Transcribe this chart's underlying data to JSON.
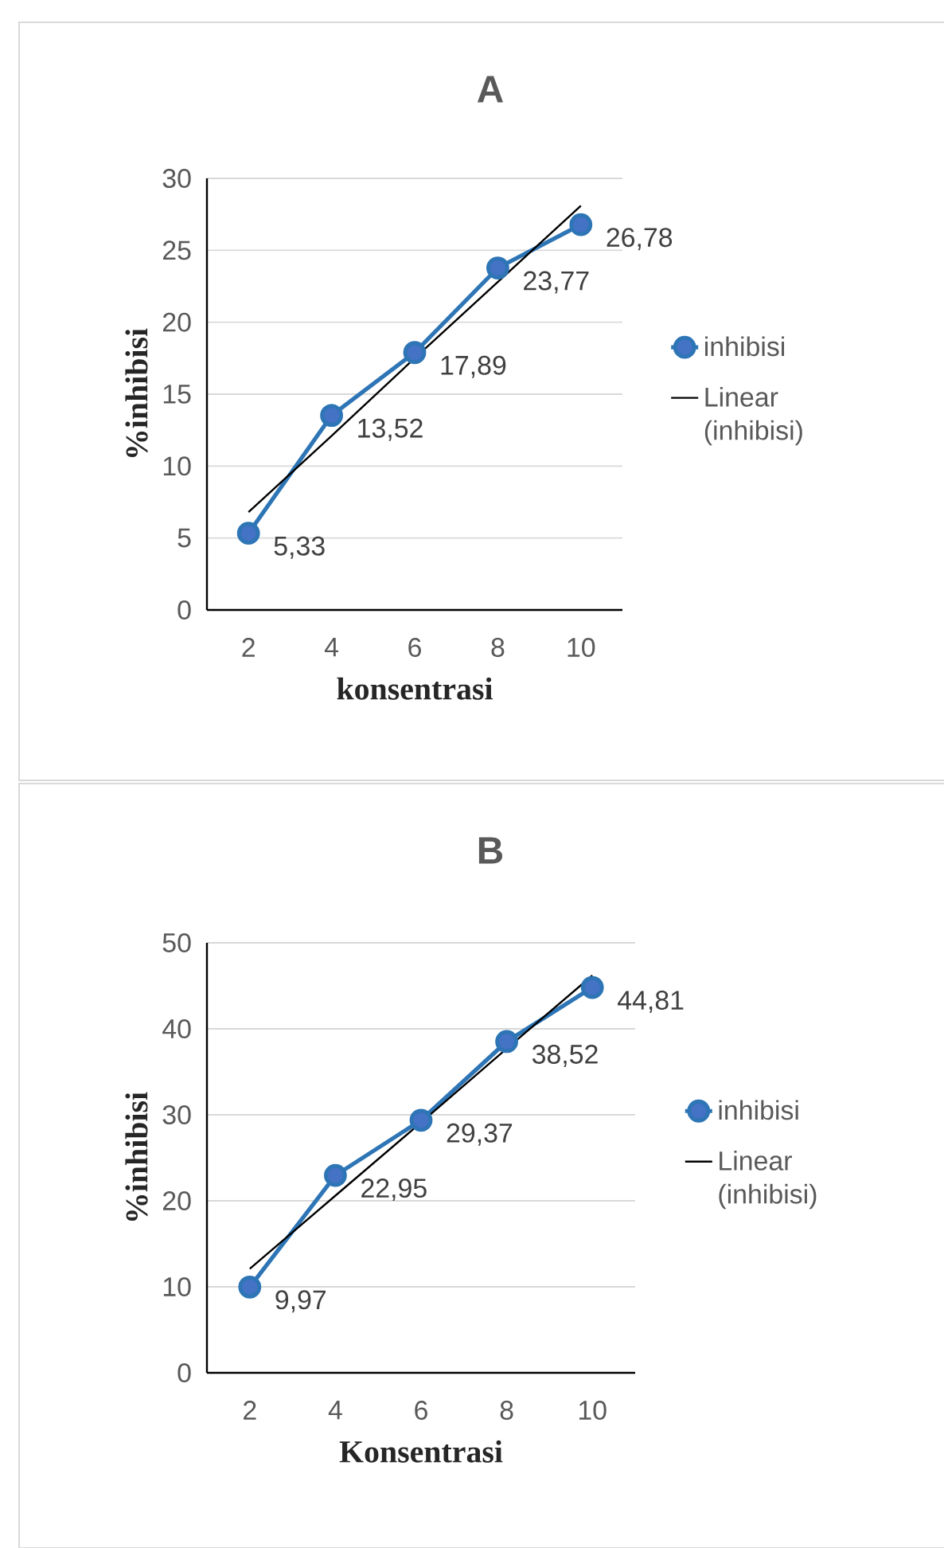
{
  "chart_data": [
    {
      "type": "line",
      "title": "A",
      "xlabel": "konsentrasi",
      "ylabel": "%inhibisi",
      "categories": [
        "2",
        "4",
        "6",
        "8",
        "10"
      ],
      "ylim": [
        0,
        30
      ],
      "yticks": [
        0,
        5,
        10,
        15,
        20,
        25,
        30
      ],
      "grid": "y",
      "legend": "right",
      "series": [
        {
          "name": "inhibisi",
          "color": "#2e75b6",
          "marker": "circle",
          "line_style": "solid",
          "values": [
            5.33,
            13.52,
            17.89,
            23.77,
            26.78
          ],
          "value_labels": [
            "5,33",
            "13,52",
            "17,89",
            "23,77",
            "26,78"
          ]
        },
        {
          "name": "Linear (inhibisi)",
          "color": "#000000",
          "marker": "none",
          "line_style": "solid",
          "values": [
            6.8,
            12.1,
            17.5,
            22.8,
            28.1
          ]
        }
      ]
    },
    {
      "type": "line",
      "title": "B",
      "xlabel": "Konsentrasi",
      "ylabel": "%inhibisi",
      "categories": [
        "2",
        "4",
        "6",
        "8",
        "10"
      ],
      "ylim": [
        0,
        50
      ],
      "yticks": [
        0,
        10,
        20,
        30,
        40,
        50
      ],
      "grid": "y",
      "legend": "right",
      "series": [
        {
          "name": "inhibisi",
          "color": "#2e75b6",
          "marker": "circle",
          "line_style": "solid",
          "values": [
            9.97,
            22.95,
            29.37,
            38.52,
            44.81
          ],
          "value_labels": [
            "9,97",
            "22,95",
            "29,37",
            "38,52",
            "44,81"
          ]
        },
        {
          "name": "Linear (inhibisi)",
          "color": "#000000",
          "marker": "none",
          "line_style": "solid",
          "values": [
            12.1,
            20.6,
            29.1,
            37.7,
            46.2
          ]
        }
      ]
    }
  ]
}
